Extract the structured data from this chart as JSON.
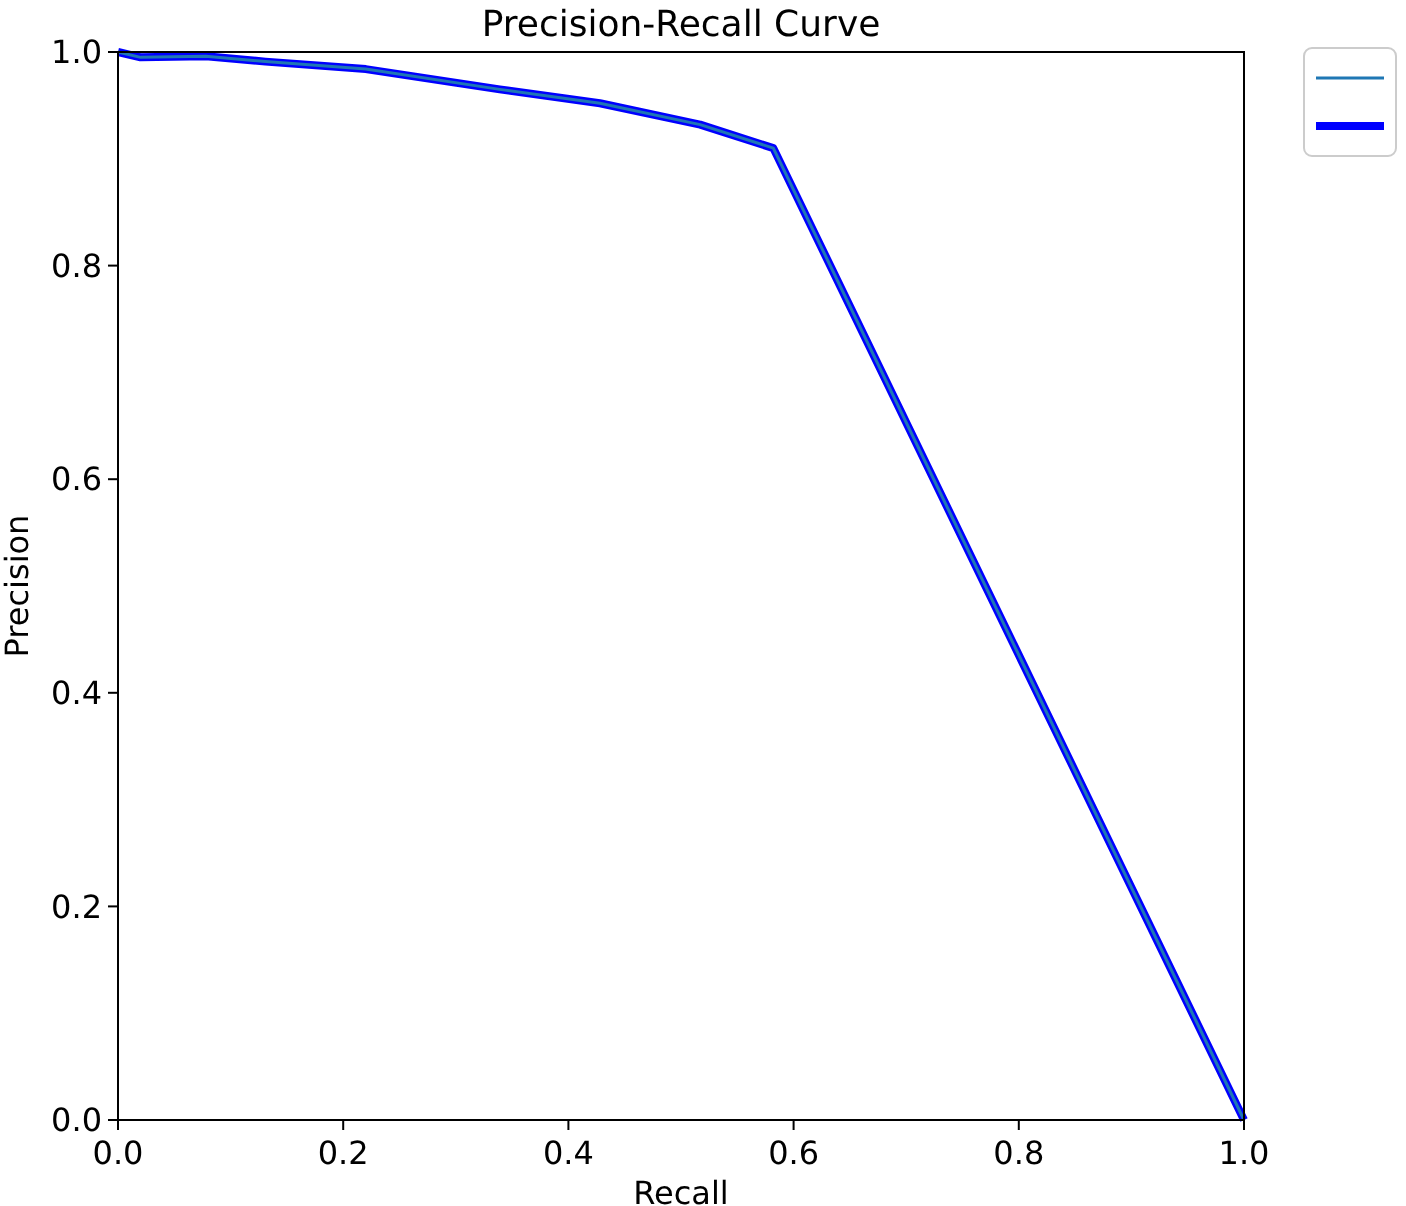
{
  "chart_data": {
    "type": "line",
    "title": "Precision-Recall Curve",
    "xlabel": "Recall",
    "ylabel": "Precision",
    "xlim": [
      0,
      1
    ],
    "ylim": [
      0,
      1
    ],
    "xticks": [
      {
        "value": 0,
        "label": "0.0"
      },
      {
        "value": 0.2,
        "label": "0.2"
      },
      {
        "value": 0.4,
        "label": "0.4"
      },
      {
        "value": 0.6,
        "label": "0.6"
      },
      {
        "value": 0.8,
        "label": "0.8"
      },
      {
        "value": 1,
        "label": "1.0"
      }
    ],
    "yticks": [
      {
        "value": 0,
        "label": "0.0"
      },
      {
        "value": 0.2,
        "label": "0.2"
      },
      {
        "value": 0.4,
        "label": "0.4"
      },
      {
        "value": 0.6,
        "label": "0.6"
      },
      {
        "value": 0.8,
        "label": "0.8"
      },
      {
        "value": 1,
        "label": "1.0"
      }
    ],
    "grid": false,
    "series": [
      {
        "color": "#1f77b4",
        "x": [
          0,
          0.02,
          0.078,
          0.131,
          0.22,
          0.339,
          0.428,
          0.517,
          0.582,
          1
        ],
        "values": [
          1,
          0.995,
          0.996,
          0.991,
          0.984,
          0.965,
          0.952,
          0.932,
          0.91,
          0
        ]
      },
      {
        "color": "#0000ff",
        "x": [
          0,
          0.02,
          0.078,
          0.131,
          0.22,
          0.339,
          0.428,
          0.517,
          0.582,
          1
        ],
        "values": [
          1,
          0.995,
          0.996,
          0.991,
          0.984,
          0.965,
          0.952,
          0.932,
          0.91,
          0
        ]
      }
    ]
  }
}
